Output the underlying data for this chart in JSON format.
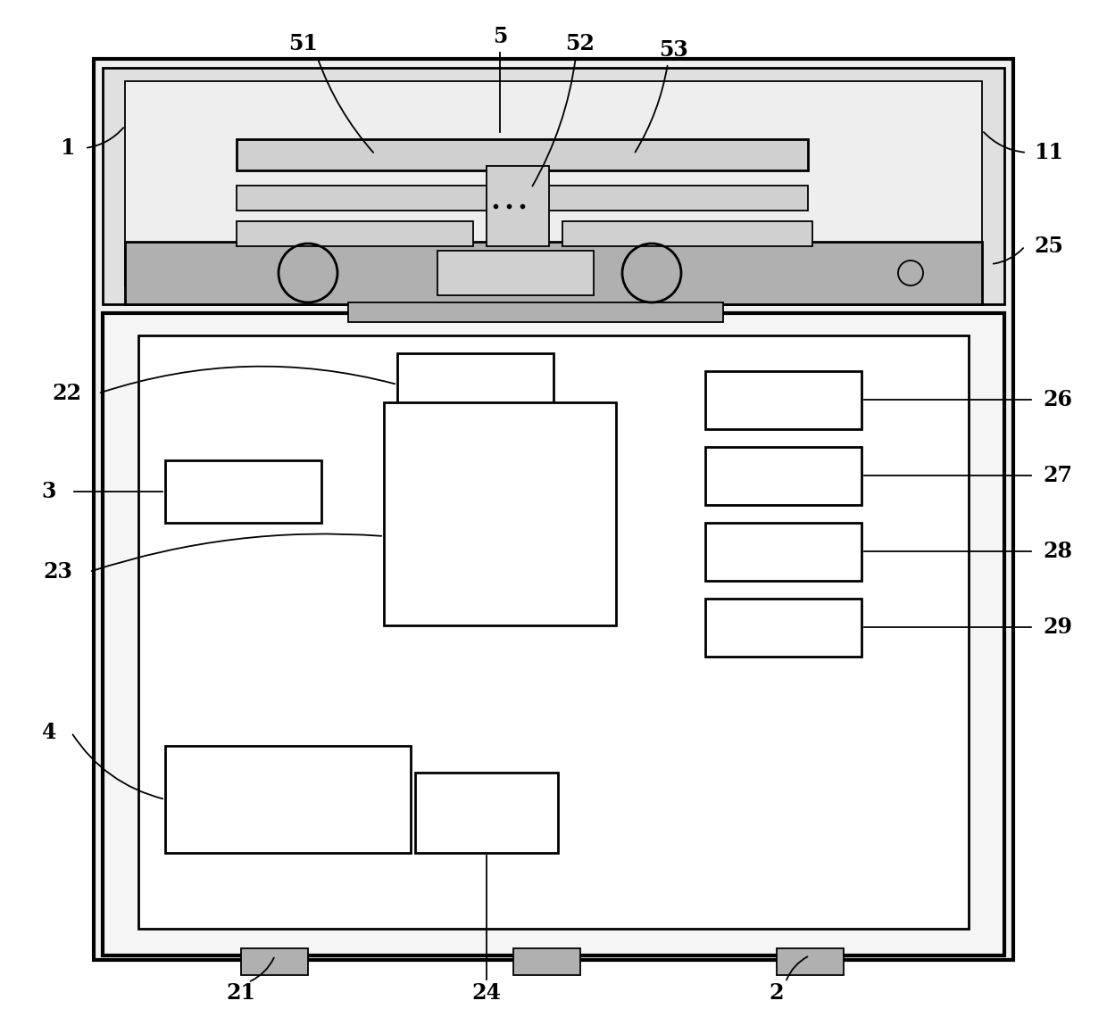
{
  "bg_color": "#ffffff",
  "fig_width": 12.4,
  "fig_height": 11.31,
  "lw_thick": 3.0,
  "lw_med": 2.0,
  "lw_thin": 1.3,
  "colors": {
    "outer_fill": "#f0f0f0",
    "top_fill": "#e0e0e0",
    "inner_fill": "#eeeeee",
    "white": "#ffffff",
    "bar_fill": "#d0d0d0",
    "dark_fill": "#b0b0b0"
  }
}
